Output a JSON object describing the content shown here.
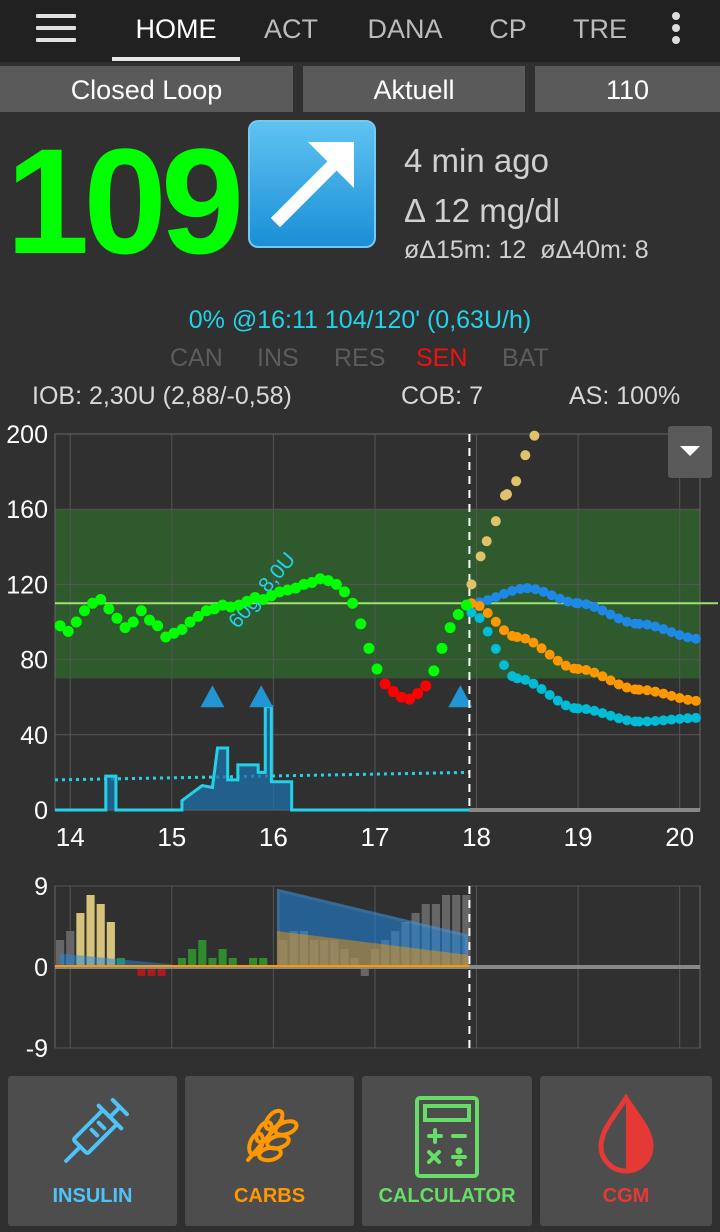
{
  "tabs": [
    {
      "label": "HOME",
      "active": true
    },
    {
      "label": "ACT"
    },
    {
      "label": "DANA"
    },
    {
      "label": "CP"
    },
    {
      "label": "TRE"
    }
  ],
  "status": {
    "loop_mode": "Closed Loop",
    "profile": "Aktuell",
    "target": "110"
  },
  "glucose": {
    "value": "109",
    "trend": "up-right-arrow-icon",
    "age": "4 min ago",
    "delta": "Δ 12 mg/dl",
    "avg_delta": "øΔ15m: 12  øΔ40m: 8"
  },
  "temp_basal": "0% @16:11 104/120' (0,63U/h)",
  "flags": {
    "can": "CAN",
    "ins": "INS",
    "res": "RES",
    "sen": "SEN",
    "bat": "BAT"
  },
  "iob": "IOB: 2,30U (2,88/-0,58)",
  "cob": "COB: 7",
  "autosens": "AS: 100%",
  "treatment_label": "60g, 8,0U",
  "colors": {
    "bg_in_range": "#00ff00",
    "bg_low": "#ff0000",
    "basal": "#22d3e8",
    "iob_pred": "#1e88e5",
    "cob_pred": "#ff9800",
    "uam_pred": "#e0c26a",
    "zt_pred": "#00bcd4",
    "target_band": "#2e5a2e"
  },
  "chart_data": [
    {
      "type": "scatter",
      "x_ticks": [
        "14",
        "15",
        "16",
        "17",
        "18",
        "19",
        "20"
      ],
      "y_ticks": [
        "0",
        "40",
        "80",
        "120",
        "160",
        "200"
      ],
      "ylim": [
        0,
        200
      ],
      "xlim": [
        13.85,
        20.2
      ],
      "target_range": [
        70,
        160
      ],
      "target_line": 110,
      "now": 17.93,
      "bg_series": [
        [
          13.9,
          98
        ],
        [
          13.98,
          95
        ],
        [
          14.06,
          100
        ],
        [
          14.14,
          106
        ],
        [
          14.22,
          110
        ],
        [
          14.3,
          112
        ],
        [
          14.38,
          107
        ],
        [
          14.46,
          102
        ],
        [
          14.54,
          97
        ],
        [
          14.62,
          100
        ],
        [
          14.7,
          106
        ],
        [
          14.78,
          101
        ],
        [
          14.86,
          98
        ],
        [
          14.94,
          92
        ],
        [
          15.02,
          94
        ],
        [
          15.1,
          96
        ],
        [
          15.18,
          100
        ],
        [
          15.26,
          103
        ],
        [
          15.34,
          106
        ],
        [
          15.42,
          107
        ],
        [
          15.5,
          109
        ],
        [
          15.58,
          108
        ],
        [
          15.66,
          109
        ],
        [
          15.74,
          111
        ],
        [
          15.82,
          113
        ],
        [
          15.9,
          112
        ],
        [
          15.98,
          114
        ],
        [
          16.06,
          116
        ],
        [
          16.14,
          117
        ],
        [
          16.22,
          118
        ],
        [
          16.3,
          120
        ],
        [
          16.38,
          121
        ],
        [
          16.46,
          123
        ],
        [
          16.54,
          122
        ],
        [
          16.62,
          120
        ],
        [
          16.7,
          116
        ],
        [
          16.78,
          110
        ],
        [
          16.86,
          99
        ],
        [
          16.94,
          86
        ],
        [
          17.02,
          75
        ],
        [
          17.1,
          67
        ],
        [
          17.18,
          63
        ],
        [
          17.26,
          60
        ],
        [
          17.34,
          59
        ],
        [
          17.42,
          62
        ],
        [
          17.5,
          66
        ],
        [
          17.58,
          74
        ],
        [
          17.66,
          86
        ],
        [
          17.74,
          97
        ],
        [
          17.82,
          104
        ],
        [
          17.9,
          109
        ]
      ],
      "low_threshold": 70,
      "basal_line": [
        [
          13.85,
          16
        ],
        [
          20.2,
          20
        ]
      ],
      "iob_prediction": [
        [
          17.95,
          110
        ],
        [
          18.5,
          118
        ],
        [
          19.0,
          110
        ],
        [
          19.6,
          99
        ],
        [
          20.2,
          91
        ]
      ],
      "cob_prediction": [
        [
          17.95,
          110
        ],
        [
          18.4,
          92
        ],
        [
          19.0,
          75
        ],
        [
          19.6,
          64
        ],
        [
          20.2,
          58
        ]
      ],
      "uam_prediction": [
        [
          17.95,
          120
        ],
        [
          18.1,
          143
        ],
        [
          18.3,
          168
        ],
        [
          18.6,
          200
        ]
      ],
      "zt_prediction": [
        [
          17.95,
          105
        ],
        [
          18.4,
          70
        ],
        [
          19.0,
          54
        ],
        [
          19.6,
          47
        ],
        [
          20.2,
          49
        ]
      ],
      "bolus_markers": [
        15.4,
        15.88,
        17.84
      ],
      "bolus_amounts": [
        "8,0U"
      ],
      "carb_amounts": [
        "60g"
      ]
    },
    {
      "type": "bar",
      "x_ticks": [
        "14",
        "15",
        "16",
        "17",
        "18",
        "19",
        "20"
      ],
      "y_ticks": [
        "9",
        "0",
        "-9"
      ],
      "ylim": [
        -9,
        9
      ],
      "deviations": [
        [
          13.9,
          3
        ],
        [
          14.0,
          4
        ],
        [
          14.1,
          6
        ],
        [
          14.2,
          8
        ],
        [
          14.3,
          7
        ],
        [
          14.4,
          5
        ],
        [
          14.5,
          1
        ],
        [
          14.6,
          0
        ],
        [
          14.7,
          -1
        ],
        [
          14.8,
          -1
        ],
        [
          14.9,
          -1
        ],
        [
          15.0,
          0
        ],
        [
          15.1,
          1
        ],
        [
          15.2,
          2
        ],
        [
          15.3,
          3
        ],
        [
          15.4,
          1
        ],
        [
          15.5,
          2
        ],
        [
          15.6,
          1
        ],
        [
          15.7,
          0
        ],
        [
          15.8,
          1
        ],
        [
          15.9,
          1
        ],
        [
          16.0,
          0
        ],
        [
          16.1,
          3
        ],
        [
          16.2,
          4
        ],
        [
          16.3,
          4
        ],
        [
          16.4,
          3
        ],
        [
          16.5,
          3
        ],
        [
          16.6,
          3
        ],
        [
          16.7,
          2
        ],
        [
          16.8,
          1
        ],
        [
          16.9,
          -1
        ],
        [
          17.0,
          2
        ],
        [
          17.1,
          3
        ],
        [
          17.2,
          4
        ],
        [
          17.3,
          5
        ],
        [
          17.4,
          6
        ],
        [
          17.5,
          7
        ],
        [
          17.6,
          7
        ],
        [
          17.7,
          8
        ],
        [
          17.8,
          8
        ],
        [
          17.9,
          8
        ]
      ],
      "iob_activity": [
        [
          16.05,
          8.5
        ],
        [
          17.9,
          3.5
        ]
      ],
      "cob_activity": [
        [
          16.05,
          3.8
        ],
        [
          17.9,
          1.2
        ]
      ]
    }
  ],
  "actions": [
    {
      "label": "INSULIN",
      "icon": "syringe-icon",
      "color": "#4fc3f7"
    },
    {
      "label": "CARBS",
      "icon": "wheat-icon",
      "color": "#ff9800"
    },
    {
      "label": "CALCULATOR",
      "icon": "calculator-icon",
      "color": "#66dd66"
    },
    {
      "label": "CGM",
      "icon": "blood-drop-icon",
      "color": "#e53935"
    }
  ]
}
